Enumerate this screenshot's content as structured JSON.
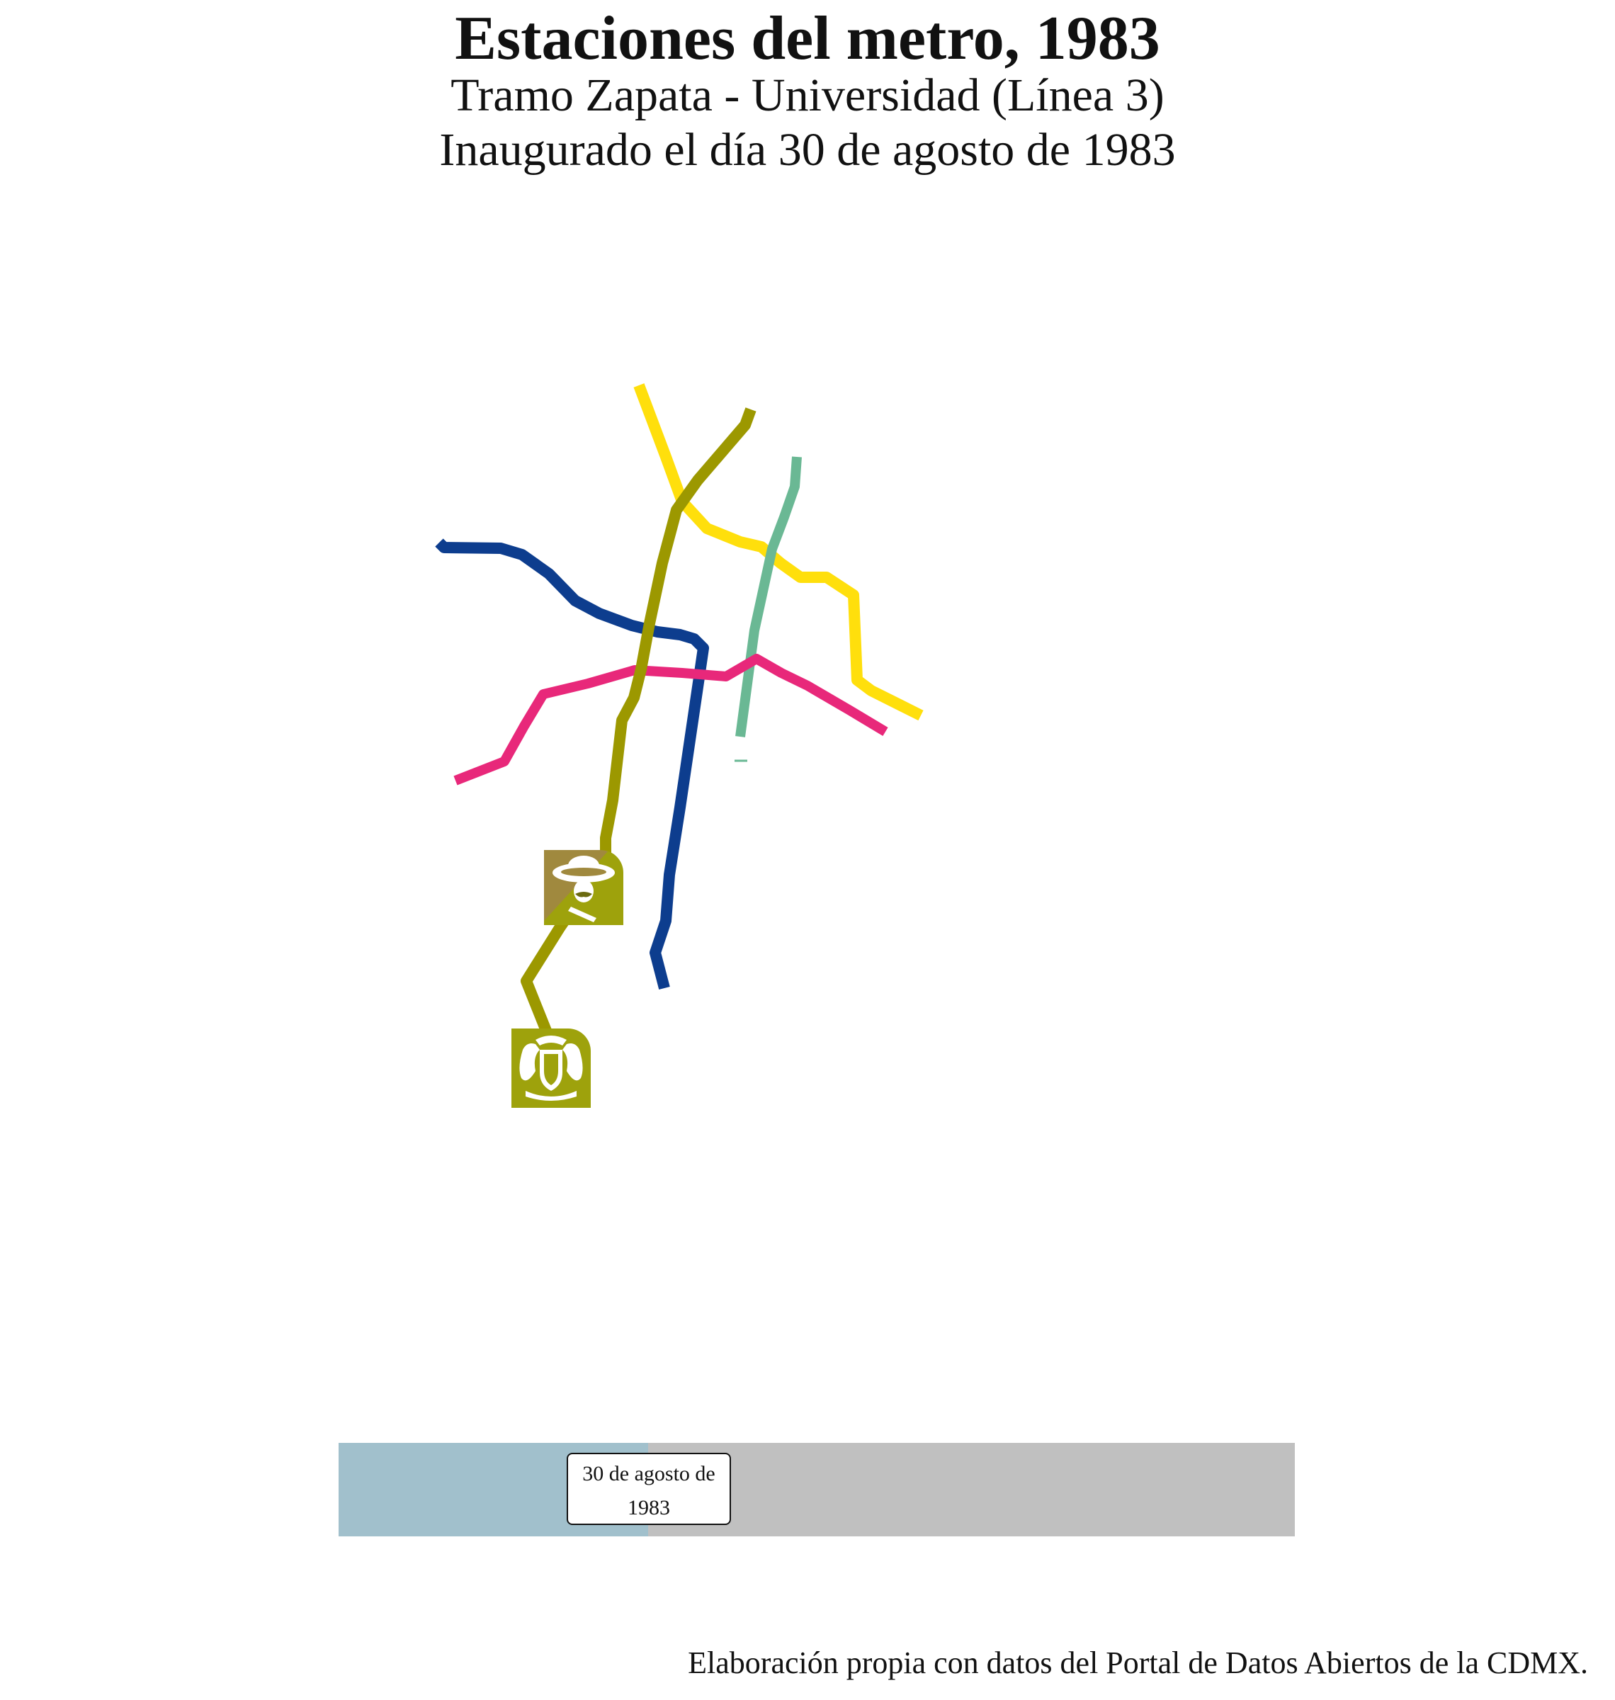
{
  "header": {
    "title": "Estaciones del metro, 1983",
    "subtitle": "Tramo Zapata - Universidad (Línea 3)",
    "inauguration": "Inaugurado el día 30 de agosto de 1983"
  },
  "map": {
    "lines": [
      {
        "id": "linea-1",
        "color": "#e8287a"
      },
      {
        "id": "linea-2",
        "color": "#0d3d8e"
      },
      {
        "id": "linea-3",
        "color": "#9c9800"
      },
      {
        "id": "linea-4",
        "color": "#6ab894"
      },
      {
        "id": "linea-5",
        "color": "#ffdf0c"
      }
    ],
    "station_icons": [
      {
        "id": "zapata",
        "icon": "zapata-station-icon",
        "color": "#a0890e"
      },
      {
        "id": "universidad",
        "icon": "universidad-station-icon",
        "color": "#9ea20c"
      }
    ]
  },
  "timeline": {
    "label_line1": "30 de agosto de",
    "label_line2": "1983",
    "progress": 0.324,
    "progress_color": "#a1c0cc",
    "track_color": "#c0c0c0"
  },
  "footer": {
    "source": "Elaboración propia con datos del Portal de Datos Abiertos de la CDMX."
  }
}
